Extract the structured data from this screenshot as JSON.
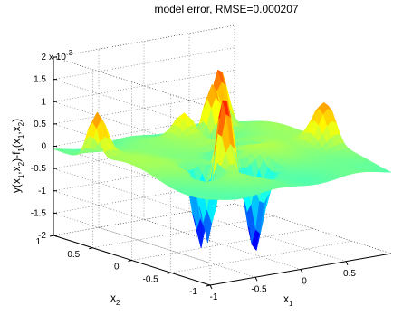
{
  "chart_data": {
    "type": "surface",
    "title": "model error, RMSE=0.000207",
    "xlabel": "x",
    "xlabel_sub": "1",
    "ylabel": "x",
    "ylabel_sub": "2",
    "zlabel_parts": [
      "y(x",
      "1",
      ",x",
      "2",
      ")-f",
      "1",
      "(x",
      "1",
      ",x",
      "2",
      ")"
    ],
    "zscale_text": "x 10",
    "zscale_exp": "-3",
    "xlim": [
      -1,
      1
    ],
    "ylim": [
      -1,
      1
    ],
    "zlim": [
      -2,
      2
    ],
    "xticks": [
      "-1",
      "-0.5",
      "0",
      "0.5"
    ],
    "yticks": [
      "-1",
      "-0.5",
      "0",
      "0.5",
      "1"
    ],
    "zticks": [
      "-2",
      "-1.5",
      "-1",
      "-0.5",
      "0",
      "0.5",
      "1",
      "1.5",
      "2"
    ],
    "grid": true,
    "colormap": "jet",
    "surface_peaks": [
      {
        "x": -0.45,
        "y": -0.25,
        "z": -1.9,
        "w": 0.07
      },
      {
        "x": -0.28,
        "y": -0.35,
        "z": 1.6,
        "w": 0.07
      },
      {
        "x": -0.12,
        "y": -0.55,
        "z": -1.8,
        "w": 0.07
      },
      {
        "x": -0.55,
        "y": -0.45,
        "z": -1.6,
        "w": 0.06
      },
      {
        "x": 0.05,
        "y": -0.4,
        "z": -1.3,
        "w": 0.08
      },
      {
        "x": 0.45,
        "y": 0.65,
        "z": 1.2,
        "w": 0.07
      },
      {
        "x": 0.62,
        "y": 0.75,
        "z": 1.4,
        "w": 0.07
      },
      {
        "x": -0.95,
        "y": 0.5,
        "z": 1.0,
        "w": 0.08
      },
      {
        "x": 0.95,
        "y": -0.2,
        "z": 0.9,
        "w": 0.1
      },
      {
        "x": 0.1,
        "y": 0.6,
        "z": 0.6,
        "w": 0.09
      },
      {
        "x": 0.0,
        "y": 0.0,
        "z": -0.8,
        "w": 0.08
      },
      {
        "x": 0.35,
        "y": 0.1,
        "z": -0.6,
        "w": 0.08
      }
    ]
  }
}
